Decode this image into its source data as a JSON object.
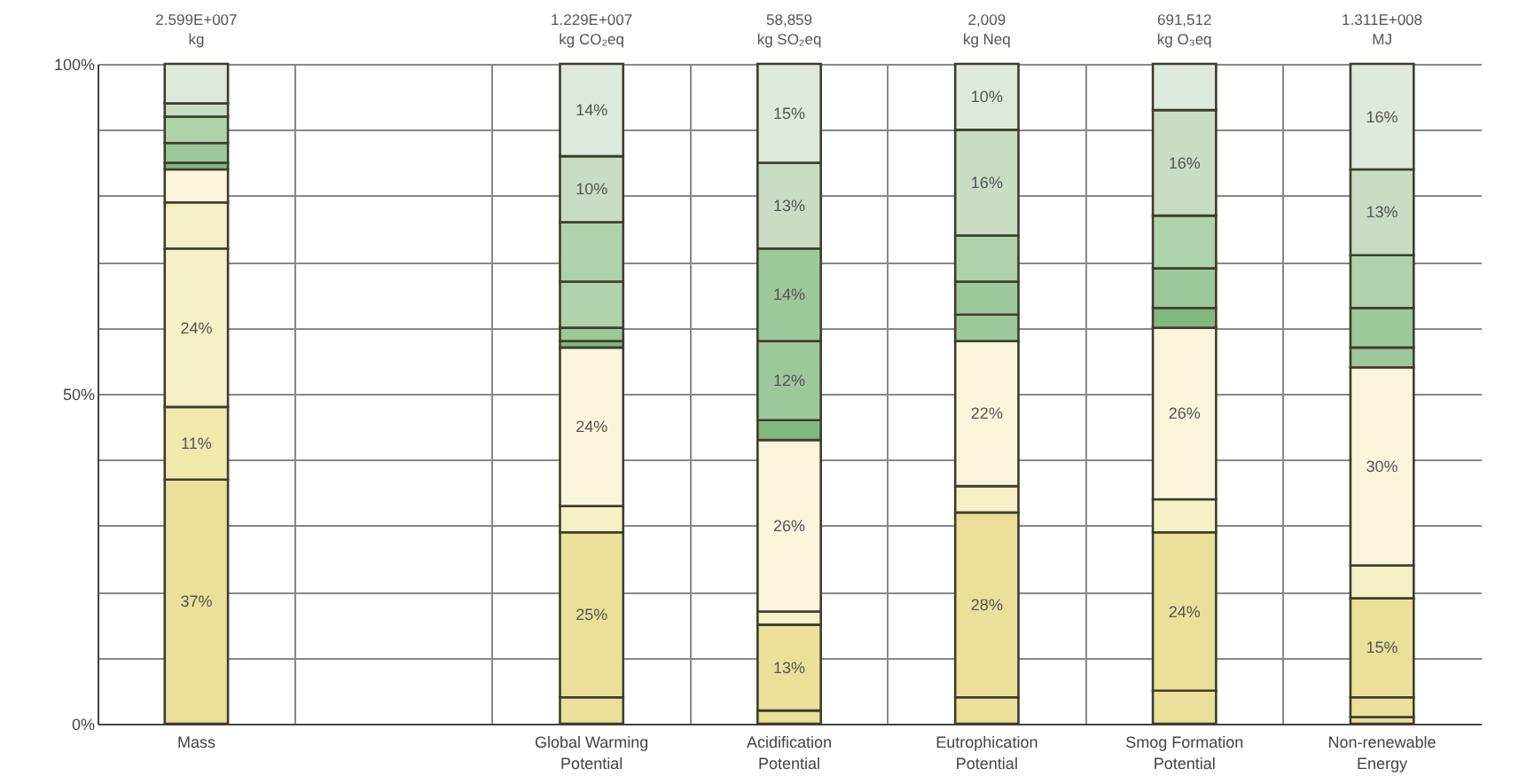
{
  "chart_data": {
    "type": "bar",
    "stacked": true,
    "categories": [
      "Mass",
      null,
      "Global Warming Potential",
      "Acidification Potential",
      "Eutrophication Potential",
      "Smog Formation Potential",
      "Non-renewable Energy"
    ],
    "annotations": [
      {
        "text": "2.599E+007 kg",
        "x": "Mass",
        "y": 100
      },
      {
        "text": "1.229E+007 kg CO₂eq",
        "x": "Global Warming Potential",
        "y": 100
      },
      {
        "text": "58,859 kg SO₂eq",
        "x": "Acidification Potential",
        "y": 100
      },
      {
        "text": "2,009 kg Neq",
        "x": "Eutrophication Potential",
        "y": 100
      },
      {
        "text": "691,512 kg O₃eq",
        "x": "Smog Formation Potential",
        "y": 100
      },
      {
        "text": "1.311E+008 MJ",
        "x": "Non-renewable Energy",
        "y": 100
      }
    ],
    "ylim": [
      0,
      100
    ],
    "yticks": [
      {
        "value": 0,
        "label": "0%"
      },
      {
        "value": 10,
        "label": null
      },
      {
        "value": 20,
        "label": null
      },
      {
        "value": 30,
        "label": null
      },
      {
        "value": 40,
        "label": null
      },
      {
        "value": 50,
        "label": "50%"
      },
      {
        "value": 60,
        "label": null
      },
      {
        "value": 70,
        "label": null
      },
      {
        "value": 80,
        "label": null
      },
      {
        "value": 90,
        "label": null
      },
      {
        "value": 100,
        "label": "100%"
      }
    ],
    "grid": true,
    "series": [
      {
        "values": [
          37,
          null,
          4,
          2,
          4,
          5,
          1
        ],
        "colors": [
          "#ebe09a",
          null,
          "#ebe09a",
          "#ebe09a",
          "#ebe09a",
          "#ebe09a",
          "#ebe09a"
        ],
        "value_labels": [
          "37%",
          null,
          null,
          null,
          null,
          null,
          null
        ]
      },
      {
        "values": [
          11,
          null,
          25,
          13,
          28,
          24,
          3
        ],
        "colors": [
          "#f1e8ad",
          null,
          "#ebe09a",
          "#ebe09a",
          "#ebe09a",
          "#ebe09a",
          "#ebe09a"
        ],
        "value_labels": [
          "11%",
          null,
          "25%",
          "13%",
          "28%",
          "24%",
          null
        ]
      },
      {
        "values": [
          24,
          null,
          4,
          2,
          4,
          5,
          15
        ],
        "colors": [
          "#f6f0c6",
          null,
          "#f6f0c6",
          "#f6f0c6",
          "#f6f0c6",
          "#f6f0c6",
          "#ebe09a"
        ],
        "value_labels": [
          "24%",
          null,
          null,
          null,
          null,
          null,
          "15%"
        ]
      },
      {
        "values": [
          7,
          null,
          24,
          26,
          22,
          26,
          5
        ],
        "colors": [
          "#f6f0c6",
          null,
          "#faf6dc",
          "#faf6dc",
          "#faf6dc",
          "#faf6dc",
          "#f6f0c6"
        ],
        "value_labels": [
          null,
          null,
          "24%",
          "26%",
          "22%",
          "26%",
          null
        ]
      },
      {
        "values": [
          5,
          null,
          1,
          3,
          4,
          3,
          30
        ],
        "colors": [
          "#faf6dc",
          null,
          "#82b77f",
          "#82b77f",
          "#9dc899",
          "#82b77f",
          "#faf6dc"
        ],
        "value_labels": [
          null,
          null,
          null,
          null,
          null,
          null,
          "30%"
        ]
      },
      {
        "values": [
          1,
          null,
          2,
          12,
          5,
          6,
          3
        ],
        "colors": [
          "#82b77f",
          null,
          "#9dc899",
          "#9dc899",
          "#9dc899",
          "#9dc899",
          "#9dc899"
        ],
        "value_labels": [
          null,
          null,
          null,
          "12%",
          null,
          null,
          null
        ]
      },
      {
        "values": [
          3,
          null,
          7,
          14,
          7,
          8,
          6
        ],
        "colors": [
          "#9dc899",
          null,
          "#aed2a9",
          "#9dc899",
          "#aed2a9",
          "#aed2a9",
          "#9dc899"
        ],
        "value_labels": [
          null,
          null,
          null,
          "14%",
          null,
          null,
          null
        ]
      },
      {
        "values": [
          4,
          null,
          9,
          13,
          16,
          16,
          8
        ],
        "colors": [
          "#aed2a9",
          null,
          "#aed2a9",
          "#c8ddc4",
          "#c8ddc4",
          "#c8ddc4",
          "#aed2a9"
        ],
        "value_labels": [
          null,
          null,
          null,
          "13%",
          "16%",
          "16%",
          null
        ]
      },
      {
        "values": [
          2,
          null,
          10,
          15,
          10,
          7,
          13
        ],
        "colors": [
          "#c8ddc4",
          null,
          "#c8ddc4",
          "#dde9da",
          "#dde9da",
          "#dde9da",
          "#c8ddc4"
        ],
        "value_labels": [
          null,
          null,
          "10%",
          "15%",
          "10%",
          null,
          "13%"
        ]
      },
      {
        "values": [
          6,
          null,
          14,
          null,
          null,
          null,
          16
        ],
        "colors": [
          "#dde9da",
          null,
          "#dde9da",
          null,
          null,
          null,
          "#dde9da"
        ],
        "value_labels": [
          null,
          null,
          "14%",
          null,
          null,
          null,
          "16%"
        ]
      }
    ]
  }
}
